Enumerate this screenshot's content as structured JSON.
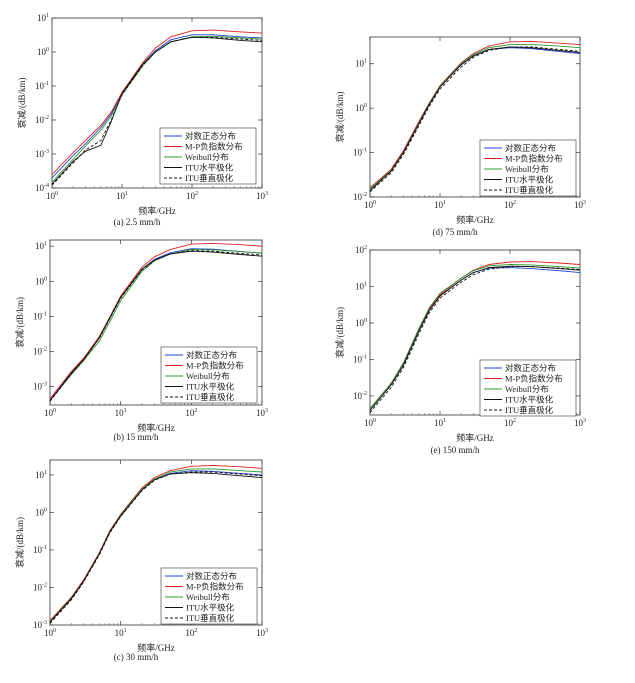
{
  "panels": [
    {
      "id": "a",
      "caption": "(a) 2.5 mm/h",
      "ylabel": "衰减/(dB/km)",
      "xlabel": "频率/GHz",
      "xticks": [
        "10^0",
        "10^1",
        "10^2",
        "10^3"
      ],
      "yticks": [
        "10^-4",
        "10^-3",
        "10^-2",
        "10^-1",
        "10^0",
        "10^1"
      ]
    },
    {
      "id": "d",
      "caption": "(d) 75 mm/h",
      "ylabel": "衰减/(dB/km)",
      "xlabel": "频率/GHz",
      "xticks": [
        "10^0",
        "10^1",
        "10^2",
        "10^3"
      ],
      "yticks": [
        "10^-2",
        "10^-1",
        "10^0",
        "10^1"
      ]
    },
    {
      "id": "b",
      "caption": "(b) 15 mm/h",
      "ylabel": "衰减/(dB/km)",
      "xlabel": "频率/GHz",
      "xticks": [
        "10^0",
        "10^1",
        "10^2",
        "10^3"
      ],
      "yticks": [
        "10^-3",
        "10^-2",
        "10^-1",
        "10^0",
        "10^1"
      ]
    },
    {
      "id": "e",
      "caption": "(e) 150 mm/h",
      "ylabel": "衰减/(dB/km)",
      "xlabel": "频率/GHz",
      "xticks": [
        "10^0",
        "10^1",
        "10^2",
        "10^3"
      ],
      "yticks": [
        "10^-2",
        "10^-1",
        "10^0",
        "10^1",
        "10^2"
      ]
    },
    {
      "id": "c",
      "caption": "(c) 30 mm/h",
      "ylabel": "衰减/(dB/km)",
      "xlabel": "频率/GHz",
      "xticks": [
        "10^0",
        "10^1",
        "10^2",
        "10^3"
      ],
      "yticks": [
        "10^-3",
        "10^-2",
        "10^-1",
        "10^0",
        "10^1"
      ]
    }
  ],
  "legend": [
    {
      "label": "对数正态分布",
      "color": "#1f3fd0",
      "dash": false
    },
    {
      "label": "M-P负指数分布",
      "color": "#e02020",
      "dash": false
    },
    {
      "label": "Weibull分布",
      "color": "#2e9a2e",
      "dash": false
    },
    {
      "label": "ITU水平极化",
      "color": "#111111",
      "dash": false
    },
    {
      "label": "ITU垂直极化",
      "color": "#111111",
      "dash": true
    }
  ],
  "chart_data": [
    {
      "type": "line",
      "panel": "a",
      "x_scale": "log",
      "y_scale": "log",
      "xlim": [
        1,
        1000
      ],
      "ylim": [
        0.0001,
        10
      ],
      "x": [
        1,
        2,
        3,
        5,
        7,
        10,
        20,
        30,
        50,
        100,
        200,
        500,
        1000
      ],
      "series": [
        {
          "name": "对数正态分布",
          "values": [
            0.0002,
            0.0009,
            0.002,
            0.006,
            0.015,
            0.06,
            0.45,
            1.1,
            2.3,
            3.2,
            3.2,
            2.8,
            2.6
          ]
        },
        {
          "name": "M-P负指数分布",
          "values": [
            0.00025,
            0.0011,
            0.0025,
            0.007,
            0.017,
            0.065,
            0.5,
            1.3,
            2.8,
            4.2,
            4.4,
            3.9,
            3.6
          ]
        },
        {
          "name": "Weibull分布",
          "values": [
            0.00015,
            0.0007,
            0.0017,
            0.005,
            0.013,
            0.055,
            0.4,
            1.0,
            2.0,
            2.8,
            2.9,
            2.6,
            2.4
          ]
        },
        {
          "name": "ITU水平极化",
          "values": [
            0.00013,
            0.0006,
            0.0012,
            0.0018,
            0.009,
            0.06,
            0.45,
            1.0,
            2.0,
            2.7,
            2.6,
            2.2,
            2.0
          ]
        },
        {
          "name": "ITU垂直极化",
          "values": [
            0.00012,
            0.00055,
            0.0013,
            0.0025,
            0.01,
            0.055,
            0.42,
            1.0,
            2.0,
            2.7,
            2.7,
            2.4,
            2.2
          ]
        }
      ]
    },
    {
      "type": "line",
      "panel": "d",
      "x_scale": "log",
      "y_scale": "log",
      "xlim": [
        1,
        1000
      ],
      "ylim": [
        0.01,
        40
      ],
      "x": [
        1,
        2,
        3,
        5,
        7,
        10,
        20,
        30,
        50,
        100,
        200,
        500,
        1000
      ],
      "series": [
        {
          "name": "对数正态分布",
          "values": [
            0.015,
            0.04,
            0.1,
            0.45,
            1.2,
            3.0,
            9.5,
            15,
            21,
            23,
            22,
            19,
            17
          ]
        },
        {
          "name": "M-P负指数分布",
          "values": [
            0.016,
            0.042,
            0.11,
            0.5,
            1.3,
            3.2,
            10.5,
            17,
            25,
            31,
            32,
            29,
            27
          ]
        },
        {
          "name": "Weibull分布",
          "values": [
            0.015,
            0.04,
            0.1,
            0.47,
            1.25,
            3.1,
            10,
            16,
            23,
            27,
            27,
            25,
            23
          ]
        },
        {
          "name": "ITU水平极化",
          "values": [
            0.014,
            0.038,
            0.1,
            0.45,
            1.2,
            3.0,
            9.5,
            15,
            21,
            24,
            23,
            20,
            18
          ]
        },
        {
          "name": "ITU垂直极化",
          "values": [
            0.013,
            0.035,
            0.09,
            0.4,
            1.1,
            2.7,
            8.5,
            14,
            20,
            24,
            24,
            21,
            19
          ]
        }
      ]
    },
    {
      "type": "line",
      "panel": "b",
      "x_scale": "log",
      "y_scale": "log",
      "xlim": [
        1,
        1000
      ],
      "ylim": [
        0.0003,
        15
      ],
      "x": [
        1,
        2,
        3,
        5,
        7,
        10,
        20,
        30,
        50,
        100,
        200,
        500,
        1000
      ],
      "series": [
        {
          "name": "对数正态分布",
          "values": [
            0.0004,
            0.0025,
            0.006,
            0.025,
            0.09,
            0.35,
            2.2,
            4.2,
            6.5,
            8.5,
            8.2,
            7.0,
            6.3
          ]
        },
        {
          "name": "M-P负指数分布",
          "values": [
            0.00045,
            0.0027,
            0.0065,
            0.027,
            0.095,
            0.38,
            2.5,
            5.0,
            8.0,
            11.5,
            12,
            11,
            10
          ]
        },
        {
          "name": "Weibull分布",
          "values": [
            0.0004,
            0.0022,
            0.0055,
            0.02,
            0.07,
            0.28,
            1.9,
            3.8,
            6.0,
            8.0,
            7.9,
            7.0,
            6.4
          ]
        },
        {
          "name": "ITU水平极化",
          "values": [
            0.0004,
            0.0024,
            0.006,
            0.025,
            0.09,
            0.35,
            2.2,
            4.0,
            6.0,
            7.2,
            6.8,
            5.8,
            5.2
          ]
        },
        {
          "name": "ITU垂直极化",
          "values": [
            0.00038,
            0.0023,
            0.0058,
            0.024,
            0.085,
            0.33,
            2.1,
            3.9,
            6.0,
            7.5,
            7.2,
            6.2,
            5.6
          ]
        }
      ]
    },
    {
      "type": "line",
      "panel": "e",
      "x_scale": "log",
      "y_scale": "log",
      "xlim": [
        1,
        1000
      ],
      "ylim": [
        0.003,
        100
      ],
      "x": [
        1,
        2,
        3,
        5,
        7,
        10,
        20,
        30,
        50,
        100,
        200,
        500,
        1000
      ],
      "series": [
        {
          "name": "对数正态分布",
          "values": [
            0.004,
            0.02,
            0.07,
            0.6,
            2.2,
            5.5,
            15,
            24,
            32,
            33,
            31,
            27,
            24
          ]
        },
        {
          "name": "M-P负指数分布",
          "values": [
            0.0045,
            0.022,
            0.08,
            0.65,
            2.4,
            6.0,
            17,
            28,
            40,
            47,
            48,
            44,
            40
          ]
        },
        {
          "name": "Weibull分布",
          "values": [
            0.0045,
            0.022,
            0.08,
            0.7,
            2.6,
            6.5,
            17,
            27,
            37,
            40,
            39,
            35,
            32
          ]
        },
        {
          "name": "ITU水平极化",
          "values": [
            0.004,
            0.02,
            0.07,
            0.6,
            2.2,
            5.5,
            15,
            24,
            33,
            36,
            35,
            31,
            28
          ]
        },
        {
          "name": "ITU垂直极化",
          "values": [
            0.0035,
            0.017,
            0.06,
            0.5,
            1.9,
            4.8,
            13,
            21,
            30,
            35,
            35,
            32,
            29
          ]
        }
      ]
    },
    {
      "type": "line",
      "panel": "c",
      "x_scale": "log",
      "y_scale": "log",
      "xlim": [
        1,
        1000
      ],
      "ylim": [
        0.001,
        25
      ],
      "x": [
        1,
        2,
        3,
        5,
        7,
        10,
        20,
        30,
        50,
        100,
        200,
        500,
        1000
      ],
      "series": [
        {
          "name": "对数正态分布",
          "values": [
            0.0012,
            0.005,
            0.015,
            0.08,
            0.3,
            0.8,
            4.0,
            7.5,
            11,
            13,
            12.5,
            11,
            10
          ]
        },
        {
          "name": "M-P负指数分布",
          "values": [
            0.0013,
            0.0055,
            0.016,
            0.085,
            0.32,
            0.9,
            4.5,
            8.5,
            13,
            17,
            18,
            16.5,
            15
          ]
        },
        {
          "name": "Weibull分布",
          "values": [
            0.0012,
            0.0052,
            0.015,
            0.08,
            0.3,
            0.85,
            4.2,
            7.8,
            12,
            14.5,
            14.5,
            13,
            12
          ]
        },
        {
          "name": "ITU水平极化",
          "values": [
            0.0012,
            0.005,
            0.015,
            0.08,
            0.3,
            0.8,
            4.0,
            7.5,
            10.5,
            11.5,
            11,
            9.5,
            8.5
          ]
        },
        {
          "name": "ITU垂直极化",
          "values": [
            0.0011,
            0.0047,
            0.014,
            0.075,
            0.28,
            0.78,
            3.8,
            7.2,
            10.5,
            12,
            12,
            10.5,
            9.5
          ]
        }
      ]
    }
  ]
}
